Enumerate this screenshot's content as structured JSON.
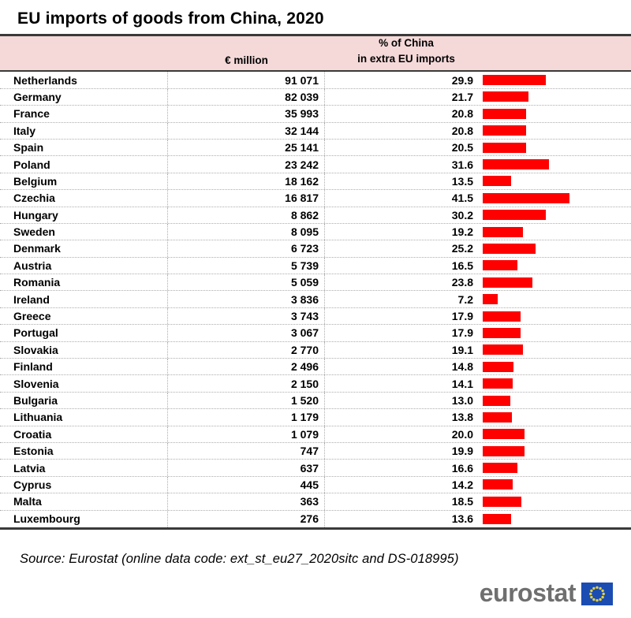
{
  "title": "EU imports of goods from China, 2020",
  "header": {
    "million_label": "€ million",
    "pct_label_line1": "% of China",
    "pct_label_line2": "in extra EU imports"
  },
  "table": {
    "rows": [
      {
        "country": "Netherlands",
        "value": "91 071",
        "pct": "29.9",
        "pct_num": 29.9
      },
      {
        "country": "Germany",
        "value": "82 039",
        "pct": "21.7",
        "pct_num": 21.7
      },
      {
        "country": "France",
        "value": "35 993",
        "pct": "20.8",
        "pct_num": 20.8
      },
      {
        "country": "Italy",
        "value": "32 144",
        "pct": "20.8",
        "pct_num": 20.8
      },
      {
        "country": "Spain",
        "value": "25 141",
        "pct": "20.5",
        "pct_num": 20.5
      },
      {
        "country": "Poland",
        "value": "23 242",
        "pct": "31.6",
        "pct_num": 31.6
      },
      {
        "country": "Belgium",
        "value": "18 162",
        "pct": "13.5",
        "pct_num": 13.5
      },
      {
        "country": "Czechia",
        "value": "16 817",
        "pct": "41.5",
        "pct_num": 41.5
      },
      {
        "country": "Hungary",
        "value": "8 862",
        "pct": "30.2",
        "pct_num": 30.2
      },
      {
        "country": "Sweden",
        "value": "8 095",
        "pct": "19.2",
        "pct_num": 19.2
      },
      {
        "country": "Denmark",
        "value": "6 723",
        "pct": "25.2",
        "pct_num": 25.2
      },
      {
        "country": "Austria",
        "value": "5 739",
        "pct": "16.5",
        "pct_num": 16.5
      },
      {
        "country": "Romania",
        "value": "5 059",
        "pct": "23.8",
        "pct_num": 23.8
      },
      {
        "country": "Ireland",
        "value": "3 836",
        "pct": "7.2",
        "pct_num": 7.2
      },
      {
        "country": "Greece",
        "value": "3 743",
        "pct": "17.9",
        "pct_num": 17.9
      },
      {
        "country": "Portugal",
        "value": "3 067",
        "pct": "17.9",
        "pct_num": 17.9
      },
      {
        "country": "Slovakia",
        "value": "2 770",
        "pct": "19.1",
        "pct_num": 19.1
      },
      {
        "country": "Finland",
        "value": "2 496",
        "pct": "14.8",
        "pct_num": 14.8
      },
      {
        "country": "Slovenia",
        "value": "2 150",
        "pct": "14.1",
        "pct_num": 14.1
      },
      {
        "country": "Bulgaria",
        "value": "1 520",
        "pct": "13.0",
        "pct_num": 13.0
      },
      {
        "country": "Lithuania",
        "value": "1 179",
        "pct": "13.8",
        "pct_num": 13.8
      },
      {
        "country": "Croatia",
        "value": "1 079",
        "pct": "20.0",
        "pct_num": 20.0
      },
      {
        "country": "Estonia",
        "value": "747",
        "pct": "19.9",
        "pct_num": 19.9
      },
      {
        "country": "Latvia",
        "value": "637",
        "pct": "16.6",
        "pct_num": 16.6
      },
      {
        "country": "Cyprus",
        "value": "445",
        "pct": "14.2",
        "pct_num": 14.2
      },
      {
        "country": "Malta",
        "value": "363",
        "pct": "18.5",
        "pct_num": 18.5
      },
      {
        "country": "Luxembourg",
        "value": "276",
        "pct": "13.6",
        "pct_num": 13.6
      }
    ]
  },
  "chart_data": {
    "type": "bar",
    "title": "EU imports of goods from China, 2020",
    "orientation": "horizontal",
    "categories": [
      "Netherlands",
      "Germany",
      "France",
      "Italy",
      "Spain",
      "Poland",
      "Belgium",
      "Czechia",
      "Hungary",
      "Sweden",
      "Denmark",
      "Austria",
      "Romania",
      "Ireland",
      "Greece",
      "Portugal",
      "Slovakia",
      "Finland",
      "Slovenia",
      "Bulgaria",
      "Lithuania",
      "Croatia",
      "Estonia",
      "Latvia",
      "Cyprus",
      "Malta",
      "Luxembourg"
    ],
    "series": [
      {
        "name": "€ million",
        "values": [
          91071,
          82039,
          35993,
          32144,
          25141,
          23242,
          18162,
          16817,
          8862,
          8095,
          6723,
          5739,
          5059,
          3836,
          3743,
          3067,
          2770,
          2496,
          2150,
          1520,
          1179,
          1079,
          747,
          637,
          445,
          363,
          276
        ]
      },
      {
        "name": "% of China in extra EU imports",
        "values": [
          29.9,
          21.7,
          20.8,
          20.8,
          20.5,
          31.6,
          13.5,
          41.5,
          30.2,
          19.2,
          25.2,
          16.5,
          23.8,
          7.2,
          17.9,
          17.9,
          19.1,
          14.8,
          14.1,
          13.0,
          13.8,
          20.0,
          19.9,
          16.6,
          14.2,
          18.5,
          13.6
        ]
      }
    ],
    "bars_depict_series": "% of China in extra EU imports",
    "bar_axis_range": [
      0,
      45
    ],
    "grid": "dotted row separators, no value axis shown",
    "legend": "none",
    "bar_color": "#ff0000"
  },
  "source": "Source: Eurostat (online data code: ext_st_eu27_2020sitc and DS-018995)",
  "logo": {
    "text": "eurostat",
    "flag": "eu-flag"
  },
  "colors": {
    "bar_red": "#ff0000",
    "header_pink": "#F5D9D9",
    "rule_dark": "#3a3a3a",
    "grid_dotted": "#adadad",
    "logo_gray": "#6f6f6f",
    "eu_blue": "#1b4cb2",
    "star_yellow": "#e3d13f"
  }
}
